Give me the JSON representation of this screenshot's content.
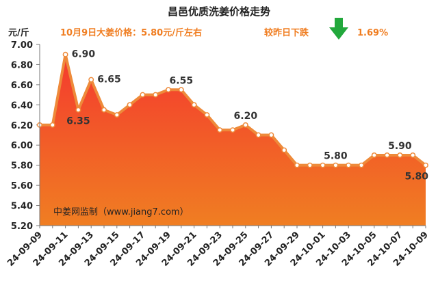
{
  "chart_data": {
    "type": "area",
    "title": "昌邑优质洗姜价格走势",
    "subtitle_left": "10月9日大姜价格：5.80元/斤左右",
    "subtitle_right_label": "较昨日下跌",
    "subtitle_right_value": "1.69%",
    "trend_icon": "down-arrow-icon",
    "ylabel": "元/斤",
    "ylim": [
      5.2,
      7.0
    ],
    "yticks": [
      "7.00",
      "6.80",
      "6.60",
      "6.40",
      "6.20",
      "6.00",
      "5.80",
      "5.60",
      "5.40",
      "5.20"
    ],
    "x": [
      "24-09-09",
      "24-09-10",
      "24-09-11",
      "24-09-12",
      "24-09-13",
      "24-09-14",
      "24-09-15",
      "24-09-16",
      "24-09-17",
      "24-09-18",
      "24-09-19",
      "24-09-20",
      "24-09-21",
      "24-09-22",
      "24-09-23",
      "24-09-24",
      "24-09-25",
      "24-09-26",
      "24-09-27",
      "24-09-28",
      "24-09-29",
      "24-09-30",
      "24-10-01",
      "24-10-02",
      "24-10-03",
      "24-10-04",
      "24-10-05",
      "24-10-06",
      "24-10-07",
      "24-10-08",
      "24-10-09"
    ],
    "xtick_labels": [
      "24-09-09",
      "24-09-11",
      "24-09-13",
      "24-09-15",
      "24-09-17",
      "24-09-19",
      "24-09-21",
      "24-09-23",
      "24-09-25",
      "24-09-27",
      "24-09-29",
      "24-10-01",
      "24-10-03",
      "24-10-05",
      "24-10-07",
      "24-10-09"
    ],
    "values": [
      6.2,
      6.2,
      6.9,
      6.35,
      6.65,
      6.35,
      6.3,
      6.4,
      6.5,
      6.5,
      6.55,
      6.55,
      6.4,
      6.3,
      6.15,
      6.15,
      6.2,
      6.1,
      6.1,
      5.95,
      5.8,
      5.8,
      5.8,
      5.8,
      5.8,
      5.8,
      5.9,
      5.9,
      5.9,
      5.9,
      5.8
    ],
    "data_labels": [
      {
        "index": 2,
        "text": "6.90",
        "pos": "right"
      },
      {
        "index": 3,
        "text": "6.35",
        "pos": "below"
      },
      {
        "index": 4,
        "text": "6.65",
        "pos": "right"
      },
      {
        "index": 11,
        "text": "6.55",
        "pos": "above"
      },
      {
        "index": 16,
        "text": "6.20",
        "pos": "above"
      },
      {
        "index": 23,
        "text": "5.80",
        "pos": "above"
      },
      {
        "index": 28,
        "text": "5.90",
        "pos": "above"
      },
      {
        "index": 30,
        "text": "5.80",
        "pos": "below"
      }
    ],
    "source_note": "中姜网监制（www.jiang7.com）",
    "grid": false,
    "colors": {
      "fill_top": "#f43a2e",
      "fill_bottom": "#f07e22",
      "line": "#ee8a3a",
      "marker": "#ffffff",
      "accent": "#f07e22",
      "arrow": "#22a83c"
    }
  }
}
